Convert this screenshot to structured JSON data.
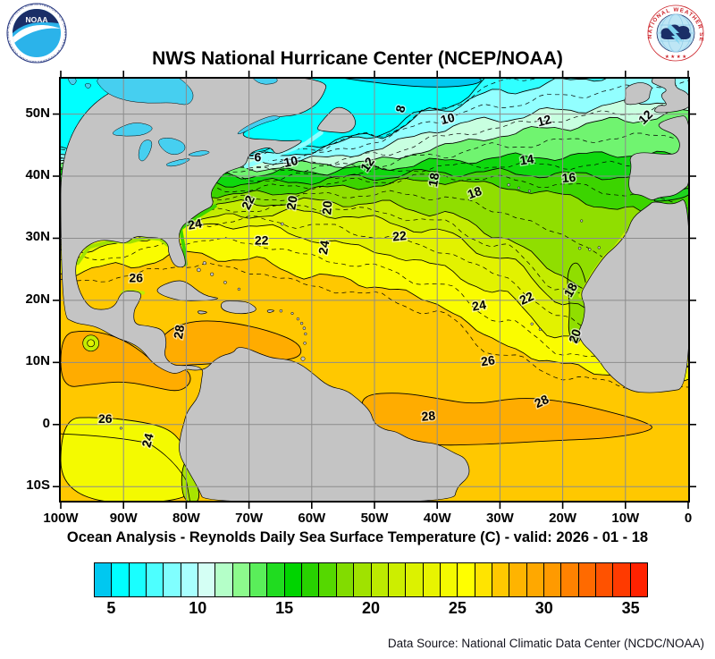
{
  "header": {
    "title": "NWS National Hurricane Center (NCEP/NOAA)"
  },
  "logos": {
    "noaa": {
      "text": "NOAA",
      "ring_text": "NATIONAL OCEANIC AND ATMOSPHERIC ADMINISTRATION - U.S. DEPARTMENT OF COMMERCE"
    },
    "nws": {
      "arc_text": "NATIONAL WEATHER SERVICE",
      "stars": "★ ★ ★ ★"
    }
  },
  "subtitle": "Ocean Analysis - Reynolds Daily Sea Surface Temperature (C) - valid: 2026 - 01 - 18",
  "footer": {
    "source": "Data Source: National Climatic Data Center (NCDC/NOAA)"
  },
  "axes": {
    "x_ticks": [
      {
        "label": "100W",
        "lon": -100
      },
      {
        "label": "90W",
        "lon": -90
      },
      {
        "label": "80W",
        "lon": -80
      },
      {
        "label": "70W",
        "lon": -70
      },
      {
        "label": "60W",
        "lon": -60
      },
      {
        "label": "50W",
        "lon": -50
      },
      {
        "label": "40W",
        "lon": -40
      },
      {
        "label": "30W",
        "lon": -30
      },
      {
        "label": "20W",
        "lon": -20
      },
      {
        "label": "10W",
        "lon": -10
      },
      {
        "label": "0",
        "lon": 0
      }
    ],
    "y_ticks": [
      {
        "label": "50N",
        "lat": 50
      },
      {
        "label": "40N",
        "lat": 40
      },
      {
        "label": "30N",
        "lat": 30
      },
      {
        "label": "20N",
        "lat": 20
      },
      {
        "label": "10N",
        "lat": 10
      },
      {
        "label": "0",
        "lat": 0
      },
      {
        "label": "10S",
        "lat": -10
      }
    ],
    "lon_range": [
      -100,
      0
    ],
    "lat_range": [
      -12.2,
      55.7
    ]
  },
  "colorbar": {
    "min": 4,
    "max": 36,
    "step": 1,
    "colors": [
      "#00C8F0",
      "#00FFFF",
      "#19FFFF",
      "#4DFFFF",
      "#80FFFF",
      "#A8FFFF",
      "#D4FFF4",
      "#B4FFC8",
      "#8CFA8C",
      "#5AEE5A",
      "#20DC20",
      "#00D400",
      "#28D200",
      "#55D800",
      "#82DC00",
      "#A0E200",
      "#BCEA00",
      "#CCEE00",
      "#DCF200",
      "#E8F400",
      "#F4FA00",
      "#FFFF00",
      "#FFE400",
      "#FFC800",
      "#FFB400",
      "#FFA800",
      "#FF9A00",
      "#FF8200",
      "#FF6A00",
      "#FF5200",
      "#FF3A00",
      "#FF2200"
    ],
    "tick_labels": [
      {
        "value": 5,
        "label": "5"
      },
      {
        "value": 10,
        "label": "10"
      },
      {
        "value": 15,
        "label": "15"
      },
      {
        "value": 20,
        "label": "20"
      },
      {
        "value": 25,
        "label": "25"
      },
      {
        "value": 30,
        "label": "30"
      },
      {
        "value": 35,
        "label": "35"
      }
    ]
  },
  "map_data": {
    "type": "contour-map",
    "field": "Reynolds Daily Sea Surface Temperature (C)",
    "grid_interval_deg": 10,
    "isotherms": [
      {
        "temp": 6,
        "lats": [
          44.5,
          44.5,
          44.3,
          43.8,
          45.2,
          46.5,
          50.5,
          56.5,
          58,
          58,
          58
        ]
      },
      {
        "temp": 8,
        "lats": [
          43.8,
          43.8,
          43.6,
          43.1,
          44.0,
          46.8,
          50.8,
          53.5,
          55.2,
          56.5,
          57.5
        ]
      },
      {
        "temp": 10,
        "lats": [
          43.0,
          43.0,
          42.8,
          42.3,
          42.6,
          44.2,
          47.6,
          49.3,
          50.6,
          51.6,
          52.6
        ]
      },
      {
        "temp": 12,
        "lats": [
          41.8,
          41.8,
          41.7,
          41.3,
          41.9,
          42.3,
          44.6,
          46.6,
          48.0,
          49.0,
          50.3
        ]
      },
      {
        "temp": 14,
        "lats": [
          40.8,
          40.8,
          40.7,
          40.2,
          40.8,
          41.3,
          42.3,
          43.0,
          43.2,
          43.6,
          43.2
        ]
      },
      {
        "temp": 16,
        "lats": [
          39.3,
          39.3,
          39.2,
          38.8,
          39.3,
          39.9,
          40.6,
          40.6,
          40.2,
          40.0,
          39.4
        ]
      },
      {
        "temp": 18,
        "lats": [
          37.4,
          37.4,
          37.3,
          37.0,
          37.8,
          38.6,
          39.4,
          38.4,
          36.8,
          34.5,
          31.5
        ]
      },
      {
        "temp": 20,
        "lats": [
          34.5,
          34.5,
          35.0,
          35.6,
          35.9,
          35.6,
          34.2,
          30.5,
          24.0,
          17.0,
          15.5
        ]
      },
      {
        "temp": 22,
        "lats": [
          31.2,
          31.5,
          32.6,
          33.8,
          34.2,
          33.0,
          31.0,
          27.0,
          20.0,
          15.0,
          13.5
        ]
      },
      {
        "temp": 24,
        "lats": [
          28.0,
          29.0,
          31.8,
          32.2,
          30.0,
          28.0,
          25.5,
          21.0,
          14.0,
          11.0,
          10.0
        ]
      },
      {
        "temp": 26,
        "lats": [
          24.5,
          25.5,
          27.5,
          26.5,
          24.0,
          22.5,
          19.5,
          13.0,
          9.5,
          8.0,
          7.5
        ]
      }
    ],
    "band_colors": {
      "base_warm": "#FFC800",
      "28": "#FFAC00",
      "26": "#FAFC00",
      "24": "#E2F200",
      "22": "#C4EC00",
      "20": "#90DE00",
      "18": "#3CD400",
      "16": "#0ED80E",
      "14": "#70F470",
      "12": "#C8FFE0",
      "10": "#92FFFF",
      "8": "#30FFFF",
      "6": "#00FFFF",
      "coldest": "#00C8F0",
      "lake": "#46CFF0",
      "land": "#C4C4C4",
      "grid": "#8C8C8C"
    },
    "warm_regions": [
      {
        "name": "caribbean-28",
        "temp": 28,
        "fill": "#FFAC00",
        "pts": [
          [
            -85.5,
            10.5
          ],
          [
            -84.5,
            13.5
          ],
          [
            -82,
            15.8
          ],
          [
            -78,
            16.8
          ],
          [
            -73,
            16.5
          ],
          [
            -67,
            15.2
          ],
          [
            -62,
            13.2
          ],
          [
            -61.5,
            11
          ],
          [
            -65,
            10.2
          ],
          [
            -70,
            10.8
          ],
          [
            -75,
            9.8
          ],
          [
            -80,
            9.6
          ],
          [
            -83.5,
            9.2
          ]
        ]
      },
      {
        "name": "south-atlantic-28",
        "temp": 28,
        "fill": "#FFAC00",
        "pts": [
          [
            -52,
            4.8
          ],
          [
            -46,
            5.2
          ],
          [
            -40,
            4.2
          ],
          [
            -34,
            3.2
          ],
          [
            -27,
            4.4
          ],
          [
            -20,
            3.8
          ],
          [
            -13,
            2.2
          ],
          [
            -7,
            0.5
          ],
          [
            -5,
            -0.8
          ],
          [
            -12,
            -2.2
          ],
          [
            -22,
            -2.6
          ],
          [
            -32,
            -3.2
          ],
          [
            -42,
            -3.4
          ],
          [
            -49,
            -1.2
          ],
          [
            -52,
            1.5
          ]
        ]
      },
      {
        "name": "east-pacific-28",
        "temp": 28,
        "fill": "#FFAC00",
        "pts": [
          [
            -100,
            5.8
          ],
          [
            -95,
            6.5
          ],
          [
            -90,
            7
          ],
          [
            -85,
            6
          ],
          [
            -81,
            5.2
          ],
          [
            -79,
            7
          ],
          [
            -80,
            9.2
          ],
          [
            -84,
            9
          ],
          [
            -88,
            12.5
          ],
          [
            -92,
            14.5
          ],
          [
            -96,
            15.2
          ],
          [
            -100,
            14.6
          ]
        ]
      }
    ],
    "cool_regions": [
      {
        "name": "pacific-equatorial-24-26",
        "temp": 25,
        "fill": "#F4FA00",
        "pts": [
          [
            -100,
            1
          ],
          [
            -94,
            1.2
          ],
          [
            -88,
            0.6
          ],
          [
            -83,
            -0.5
          ],
          [
            -80.5,
            -3
          ],
          [
            -79.2,
            -7
          ],
          [
            -78.4,
            -12.6
          ],
          [
            -100,
            -12.6
          ]
        ]
      },
      {
        "name": "peru-coastal-cool",
        "temp": 21,
        "fill": "#A8E400",
        "pts": [
          [
            -79.8,
            -5
          ],
          [
            -78.6,
            -8
          ],
          [
            -77.6,
            -12.6
          ],
          [
            -80.4,
            -12.6
          ],
          [
            -80.9,
            -8
          ]
        ]
      },
      {
        "name": "africa-upwelling-tongue",
        "temp": 20,
        "fill": "#90DE00",
        "pts": [
          [
            -17.2,
            26
          ],
          [
            -15.8,
            21
          ],
          [
            -16.4,
            16
          ],
          [
            -17.6,
            12.5
          ],
          [
            -19.2,
            14.5
          ],
          [
            -18.8,
            19
          ],
          [
            -19.4,
            23.5
          ],
          [
            -18.6,
            26
          ]
        ]
      },
      {
        "name": "alboran-mediterranean",
        "temp": 15,
        "fill": "#1ED41E",
        "pts": [
          [
            -5.4,
            35.8
          ],
          [
            0.3,
            36.6
          ],
          [
            0.3,
            38.4
          ],
          [
            -2.4,
            37.1
          ],
          [
            -5.4,
            36.4
          ]
        ]
      },
      {
        "name": "arctic-coldest-4",
        "temp": 4,
        "fill": "#00C8F0",
        "pts": [
          [
            -56,
            55.9
          ],
          [
            -48,
            54.8
          ],
          [
            -40,
            54.2
          ],
          [
            -33,
            54.8
          ],
          [
            -33,
            56.2
          ],
          [
            -56,
            56.2
          ]
        ]
      }
    ],
    "contour_labels": [
      {
        "t": "6",
        "lon": -68.6,
        "lat": 42.9,
        "rot": 0
      },
      {
        "t": "8",
        "lon": -45.7,
        "lat": 50.8,
        "rot": -75
      },
      {
        "t": "10",
        "lon": -63.3,
        "lat": 42.2,
        "rot": -12
      },
      {
        "t": "10",
        "lon": -38.3,
        "lat": 49.1,
        "rot": -15
      },
      {
        "t": "12",
        "lon": -51.0,
        "lat": 41.8,
        "rot": -55
      },
      {
        "t": "12",
        "lon": -22.9,
        "lat": 48.8,
        "rot": -15
      },
      {
        "t": "12",
        "lon": -6.7,
        "lat": 49.4,
        "rot": -45
      },
      {
        "t": "14",
        "lon": -25.7,
        "lat": 42.5,
        "rot": -8
      },
      {
        "t": "16",
        "lon": -19.0,
        "lat": 39.6,
        "rot": -5
      },
      {
        "t": "18",
        "lon": -40.4,
        "lat": 39.4,
        "rot": -80
      },
      {
        "t": "18",
        "lon": -34.0,
        "lat": 37.2,
        "rot": -20
      },
      {
        "t": "18",
        "lon": -18.6,
        "lat": 21.6,
        "rot": -60
      },
      {
        "t": "20",
        "lon": -63.0,
        "lat": 35.7,
        "rot": -80
      },
      {
        "t": "20",
        "lon": -57.4,
        "lat": 34.9,
        "rot": -85
      },
      {
        "t": "20",
        "lon": -17.9,
        "lat": 14.2,
        "rot": -70
      },
      {
        "t": "22",
        "lon": -70.0,
        "lat": 35.7,
        "rot": -65
      },
      {
        "t": "22",
        "lon": -68.0,
        "lat": 29.5,
        "rot": 0
      },
      {
        "t": "22",
        "lon": -46.0,
        "lat": 30.2,
        "rot": -5
      },
      {
        "t": "22",
        "lon": -25.7,
        "lat": 20.2,
        "rot": -25
      },
      {
        "t": "24",
        "lon": -78.6,
        "lat": 32.1,
        "rot": -10
      },
      {
        "t": "24",
        "lon": -57.9,
        "lat": 28.5,
        "rot": -80
      },
      {
        "t": "24",
        "lon": -33.3,
        "lat": 19.0,
        "rot": -10
      },
      {
        "t": "24",
        "lon": -86.0,
        "lat": -2.6,
        "rot": -75
      },
      {
        "t": "26",
        "lon": -88.0,
        "lat": 23.5,
        "rot": 0
      },
      {
        "t": "26",
        "lon": -31.9,
        "lat": 10.1,
        "rot": -8
      },
      {
        "t": "26",
        "lon": -92.9,
        "lat": 0.8,
        "rot": 0
      },
      {
        "t": "28",
        "lon": -81.0,
        "lat": 14.9,
        "rot": -80
      },
      {
        "t": "28",
        "lon": -41.4,
        "lat": 1.2,
        "rot": -5
      },
      {
        "t": "28",
        "lon": -23.3,
        "lat": 3.6,
        "rot": -25
      }
    ]
  }
}
